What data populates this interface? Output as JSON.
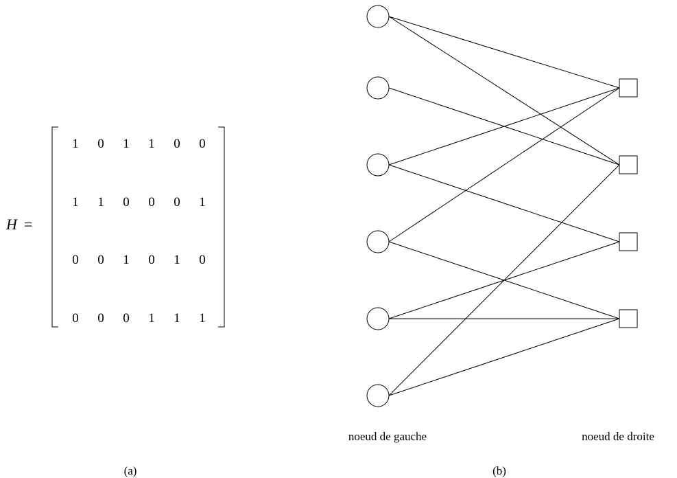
{
  "matrix": {
    "symbol": "H",
    "equals": "=",
    "rows": [
      [
        "1",
        "0",
        "1",
        "1",
        "0",
        "0"
      ],
      [
        "1",
        "1",
        "0",
        "0",
        "0",
        "1"
      ],
      [
        "0",
        "0",
        "1",
        "0",
        "1",
        "0"
      ],
      [
        "0",
        "0",
        "0",
        "1",
        "1",
        "1"
      ]
    ]
  },
  "graph": {
    "left_label": "noeud de gauche",
    "right_label": "noeud de droite",
    "left_count": 6,
    "right_count": 4
  },
  "captions": {
    "a": "(a)",
    "b": "(b)"
  }
}
